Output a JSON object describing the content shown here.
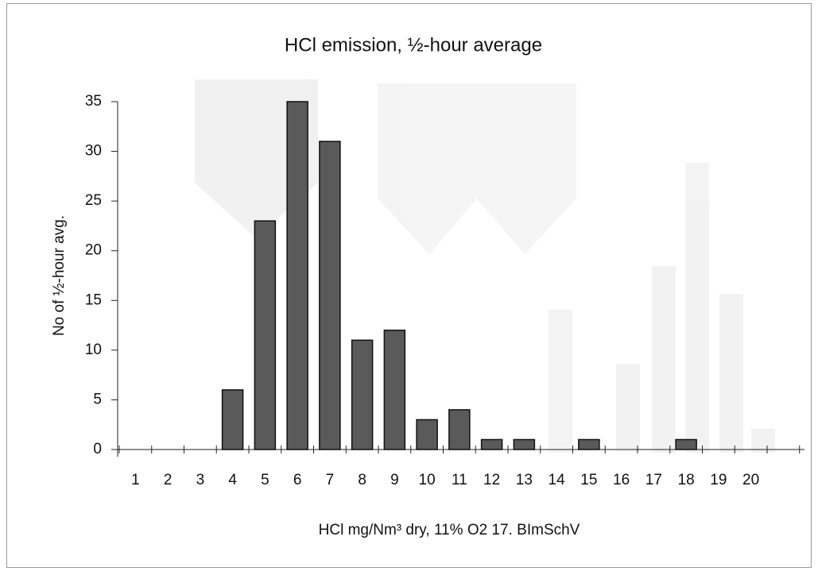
{
  "chart_data": {
    "type": "bar",
    "title": "HCl emission, ½-hour average",
    "x_label": "HCl mg/Nm³ dry, 11% O2 17. BImSchV",
    "y_label": "No of ½-hour avg.",
    "categories": [
      "1",
      "2",
      "3",
      "4",
      "5",
      "6",
      "7",
      "8",
      "9",
      "10",
      "11",
      "12",
      "13",
      "14",
      "15",
      "16",
      "17",
      "18",
      "19",
      "20"
    ],
    "values": [
      0,
      0,
      0,
      6,
      23,
      35,
      31,
      11,
      12,
      3,
      4,
      1,
      1,
      0,
      1,
      0,
      0,
      1,
      0,
      0
    ],
    "color": "#5a5a5a",
    "ylim": [
      0,
      35
    ],
    "yticks": [
      0,
      5,
      10,
      15,
      20,
      25,
      30,
      35
    ],
    "grid": false
  }
}
